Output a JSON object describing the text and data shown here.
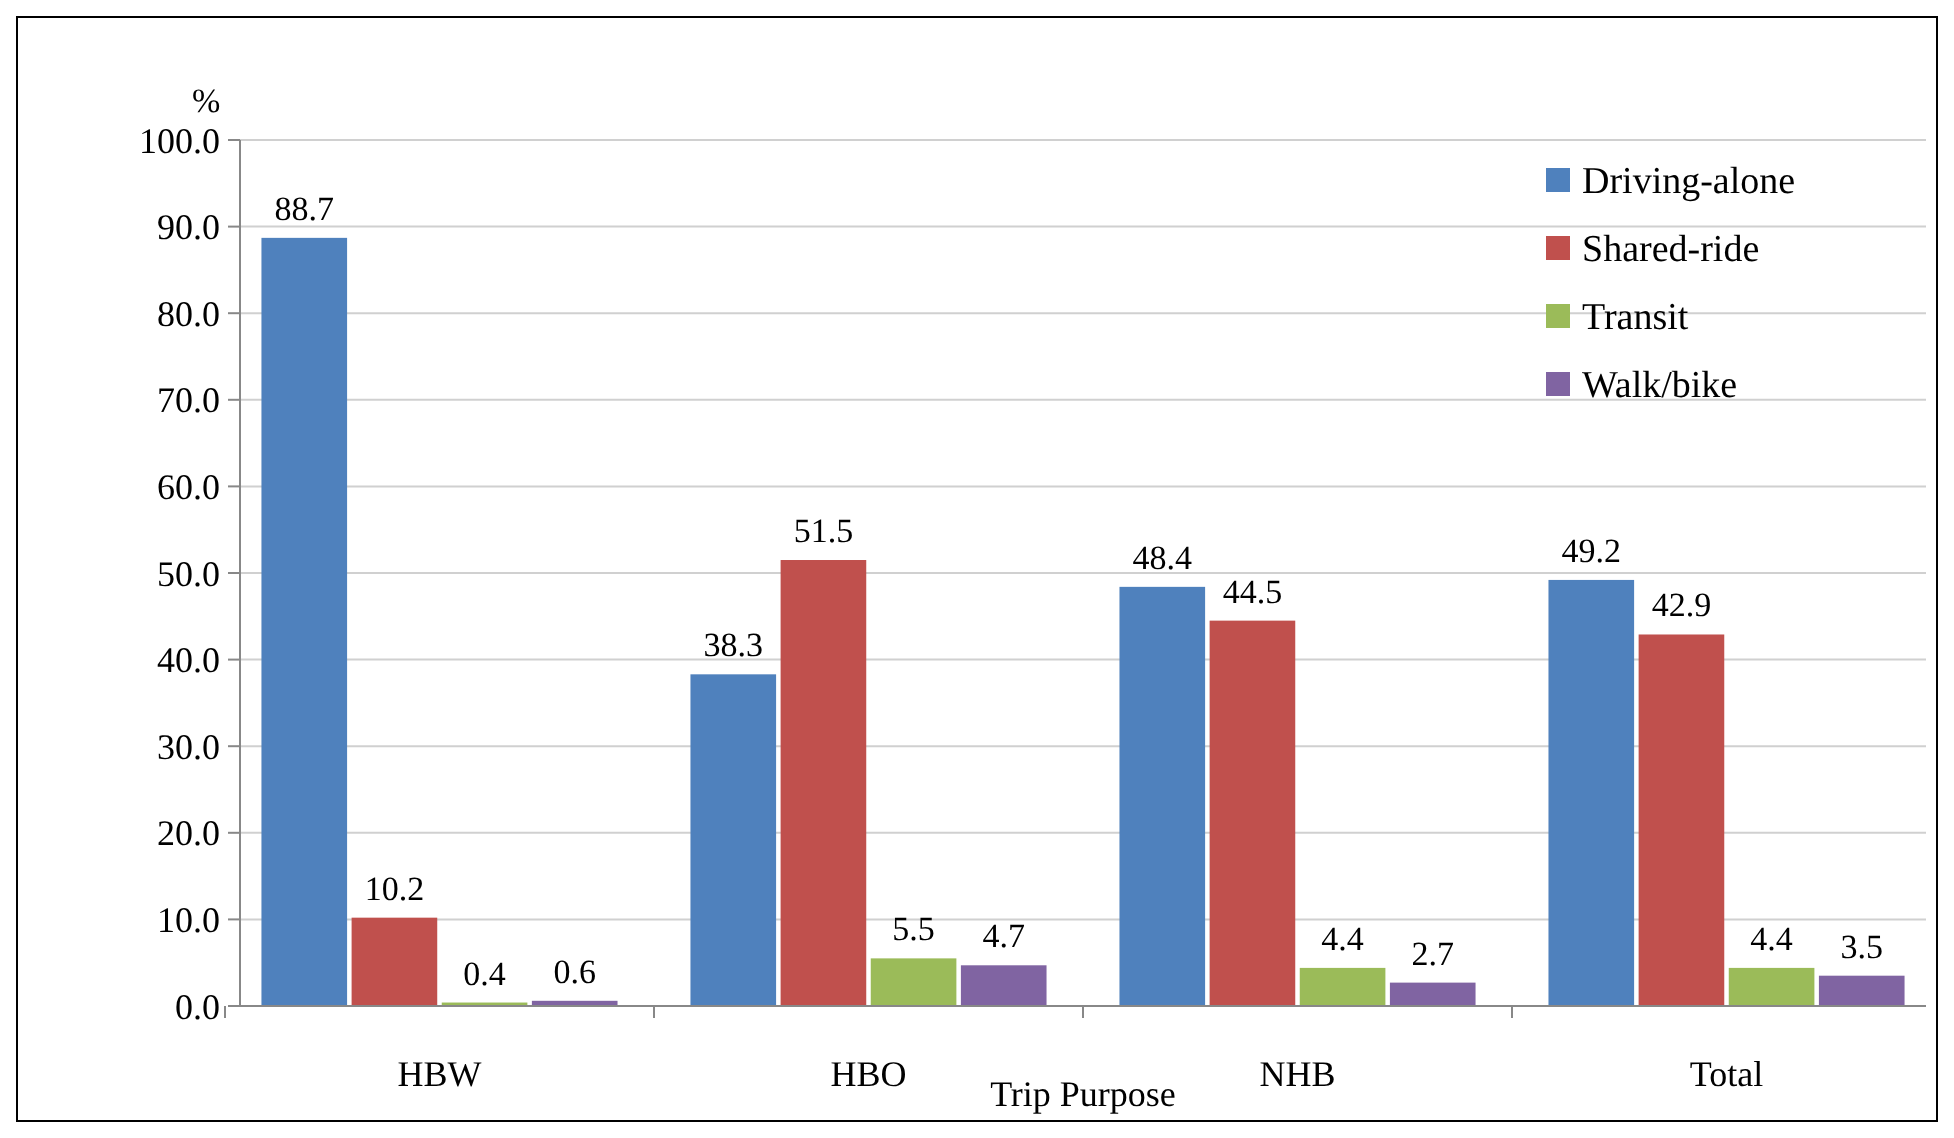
{
  "chart_data": {
    "type": "bar",
    "xlabel": "Trip Purpose",
    "ylabel": "%",
    "categories": [
      "HBW",
      "HBO",
      "NHB",
      "Total"
    ],
    "series": [
      {
        "name": "Driving-alone",
        "color": "#4f81bd",
        "values": [
          88.7,
          38.3,
          48.4,
          49.2
        ]
      },
      {
        "name": "Shared-ride",
        "color": "#c0504d",
        "values": [
          10.2,
          51.5,
          44.5,
          42.9
        ]
      },
      {
        "name": "Transit",
        "color": "#9bbb59",
        "values": [
          0.4,
          5.5,
          4.4,
          4.4
        ]
      },
      {
        "name": "Walk/bike",
        "color": "#8064a2",
        "values": [
          0.6,
          4.7,
          2.7,
          3.5
        ]
      }
    ],
    "ylim": [
      0,
      100
    ],
    "yticks": [
      {
        "value": 0,
        "label": "0.0"
      },
      {
        "value": 10,
        "label": "10.0"
      },
      {
        "value": 20,
        "label": "20.0"
      },
      {
        "value": 30,
        "label": "30.0"
      },
      {
        "value": 40,
        "label": "40.0"
      },
      {
        "value": 50,
        "label": "50.0"
      },
      {
        "value": 60,
        "label": "60.0"
      },
      {
        "value": 70,
        "label": "70.0"
      },
      {
        "value": 80,
        "label": "80.0"
      },
      {
        "value": 90,
        "label": "90.0"
      },
      {
        "value": 100,
        "label": "100.0"
      }
    ],
    "data_labels": true,
    "grid": "y",
    "legend": "top right"
  }
}
